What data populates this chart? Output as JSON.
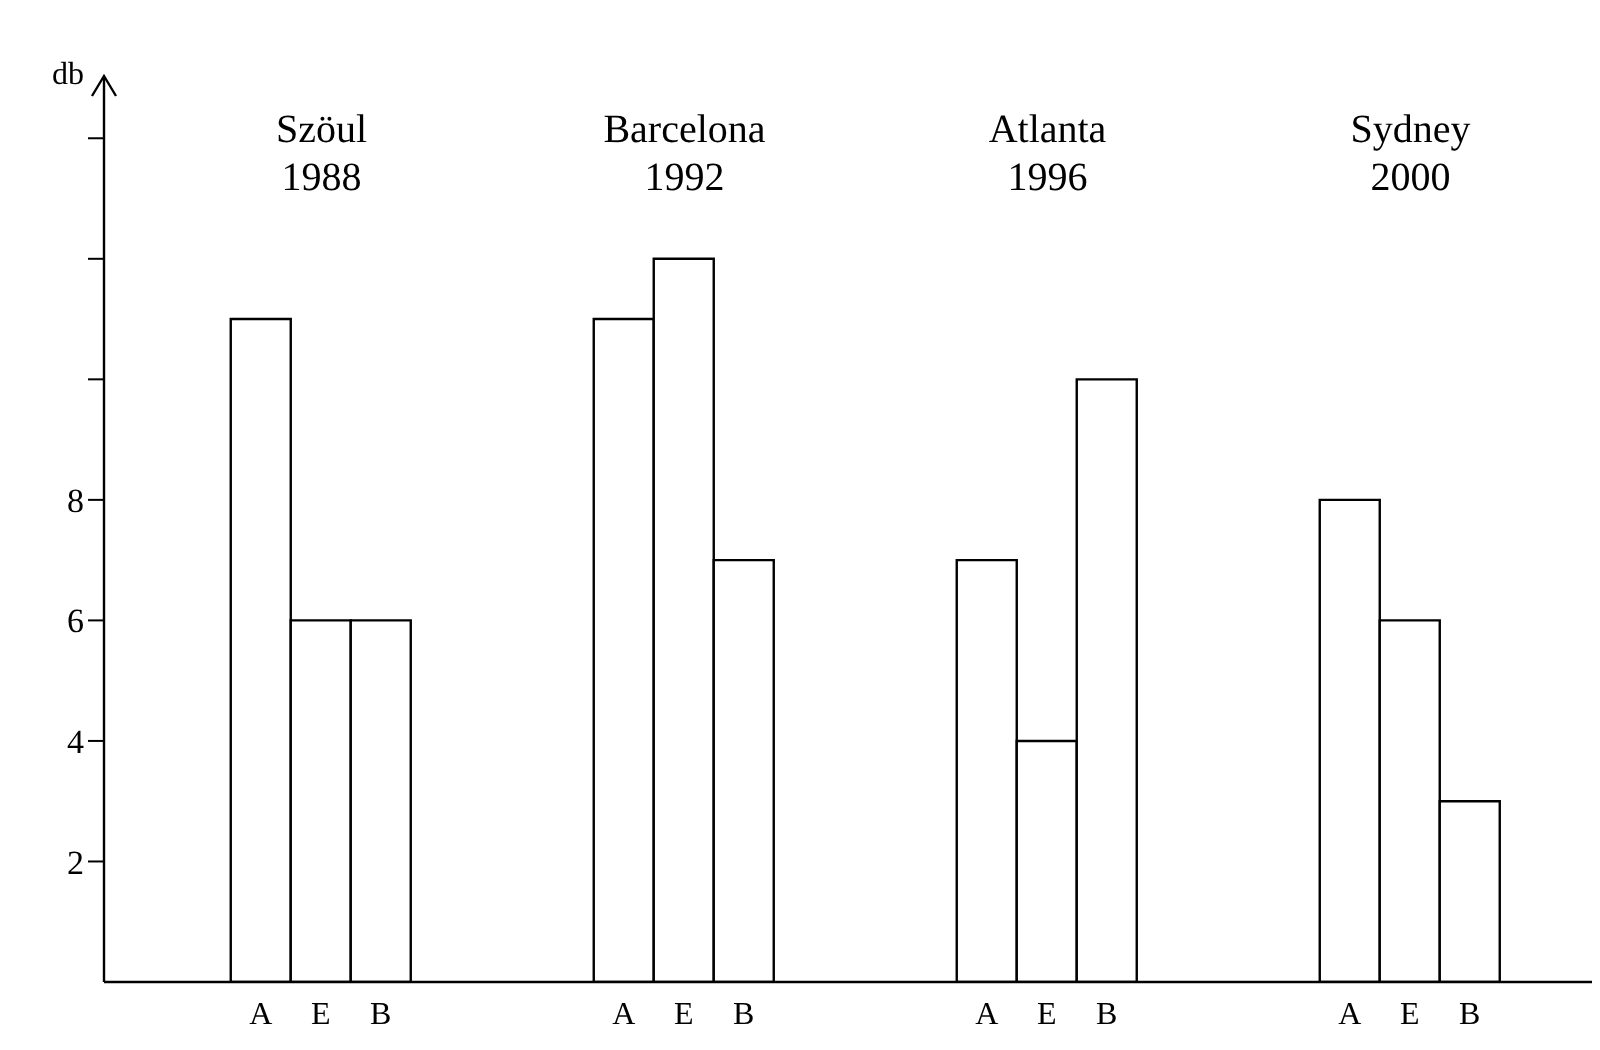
{
  "chart_data": {
    "type": "bar",
    "ylabel": "db",
    "categories": [
      "Szöul\n1988",
      "Barcelona\n1992",
      "Atlanta\n1996",
      "Sydney\n2000"
    ],
    "series": [
      {
        "name": "A",
        "color": "#ffffff",
        "values": [
          11,
          11,
          7,
          8
        ]
      },
      {
        "name": "E",
        "color": "#ffffff",
        "values": [
          6,
          12,
          4,
          6
        ]
      },
      {
        "name": "B",
        "color": "#ffffff",
        "values": [
          6,
          7,
          10,
          3
        ]
      }
    ],
    "ylim": [
      0,
      15
    ],
    "yticks": [
      2,
      4,
      6,
      8,
      {
        "value": 10,
        "label": null
      },
      {
        "value": 12,
        "label": null
      },
      {
        "value": 14,
        "label": null
      }
    ],
    "grid": false,
    "legend": false
  }
}
